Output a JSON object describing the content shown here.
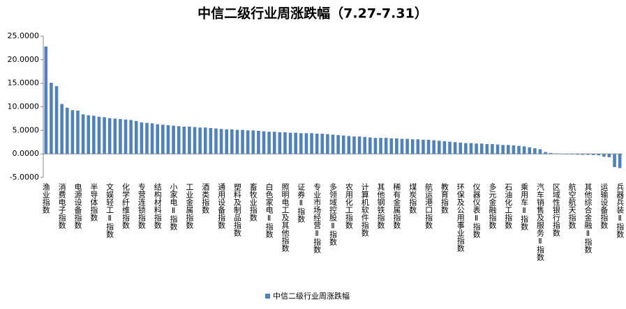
{
  "chart_data": {
    "type": "bar",
    "title": "中信二级行业周涨跌幅（7.27-7.31）",
    "categories": [
      "渔业指数",
      null,
      null,
      "消费电子指数",
      null,
      null,
      "电源设备指数",
      null,
      null,
      "半导体指数",
      null,
      null,
      "文娱轻工Ⅱ指数",
      null,
      null,
      "化学纤维指数",
      null,
      null,
      "专营连锁指数",
      null,
      null,
      "结构材料指数",
      null,
      null,
      "小家电Ⅱ指数",
      null,
      null,
      "工业金属指数",
      null,
      null,
      "酒类指数",
      null,
      null,
      "通用设备指数",
      null,
      null,
      "塑料及制品指数",
      null,
      null,
      "畜牧业指数",
      null,
      null,
      "白色家电Ⅱ指数",
      null,
      null,
      "照明电工及其他指数",
      null,
      null,
      "证券Ⅱ指数",
      null,
      null,
      "专业市场经营Ⅱ指数",
      null,
      null,
      "多领域控股Ⅱ指数",
      null,
      null,
      "农用化工指数",
      null,
      null,
      "计算机软件指数",
      null,
      null,
      "其他钢铁指数",
      null,
      null,
      "稀有金属指数",
      null,
      null,
      "煤炭指数",
      null,
      null,
      "航运港口指数",
      null,
      null,
      "教育指数",
      null,
      null,
      "环保及公用事业指数",
      null,
      null,
      "仪器仪表Ⅱ指数",
      null,
      null,
      "多元金融指数",
      null,
      null,
      "石油化工指数",
      null,
      null,
      "乘用车Ⅱ指数",
      null,
      null,
      "汽车销售及服务Ⅱ指数",
      null,
      null,
      "区域性银行指数",
      null,
      null,
      "航空航天指数",
      null,
      null,
      "其他综合金融Ⅱ指数",
      null,
      null,
      "运输设备指数",
      null,
      null,
      "兵器兵装Ⅱ指数"
    ],
    "series": [
      {
        "name": "中信二级行业周涨跌幅",
        "color": "#4f81bd",
        "values": [
          22.8,
          15.1,
          14.4,
          10.6,
          9.8,
          9.3,
          9.2,
          8.4,
          8.2,
          8.1,
          7.9,
          7.8,
          7.6,
          7.5,
          7.4,
          7.3,
          7.2,
          7.0,
          6.7,
          6.6,
          6.5,
          6.3,
          6.2,
          6.1,
          6.0,
          5.9,
          5.8,
          5.8,
          5.7,
          5.6,
          5.6,
          5.5,
          5.4,
          5.3,
          5.2,
          5.2,
          5.1,
          5.1,
          5.0,
          5.0,
          4.9,
          4.8,
          4.7,
          4.7,
          4.6,
          4.6,
          4.5,
          4.5,
          4.4,
          4.4,
          4.4,
          4.3,
          4.3,
          4.2,
          4.1,
          4.0,
          3.9,
          3.8,
          3.7,
          3.7,
          3.6,
          3.5,
          3.4,
          3.4,
          3.4,
          3.3,
          3.3,
          3.2,
          3.2,
          3.1,
          3.1,
          3.0,
          3.0,
          2.9,
          2.8,
          2.7,
          2.6,
          2.5,
          2.4,
          2.3,
          2.3,
          2.2,
          2.2,
          2.1,
          2.1,
          2.0,
          1.9,
          1.9,
          1.8,
          1.7,
          1.6,
          1.4,
          1.2,
          1.0,
          0.4,
          0.2,
          0.1,
          0.05,
          -0.1,
          -0.1,
          -0.15,
          -0.2,
          -0.2,
          -0.25,
          -0.3,
          -0.6,
          -0.7,
          -2.8,
          -3.0
        ]
      }
    ],
    "ylim": [
      -5,
      25
    ],
    "yticks": [
      {
        "value": -5,
        "label": "-5.0000"
      },
      {
        "value": 0,
        "label": "0.0000"
      },
      {
        "value": 5,
        "label": "5.0000"
      },
      {
        "value": 10,
        "label": "10.0000"
      },
      {
        "value": 15,
        "label": "15.0000"
      },
      {
        "value": 20,
        "label": "20.0000"
      },
      {
        "value": 25,
        "label": "25.0000"
      }
    ],
    "legend": "bottom"
  }
}
